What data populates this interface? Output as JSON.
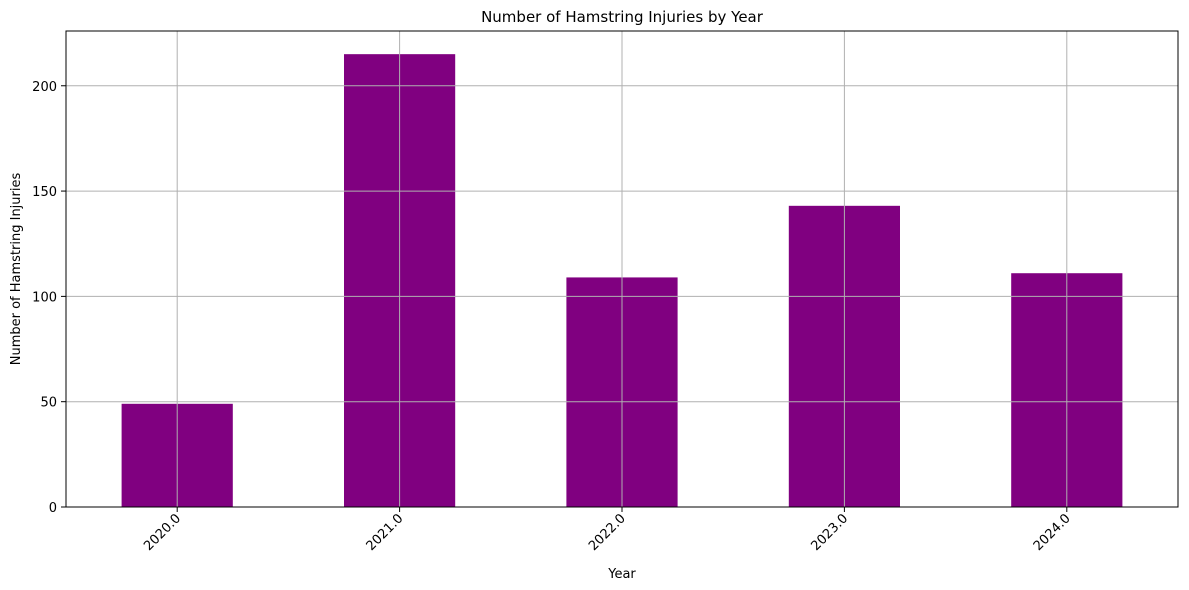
{
  "chart_data": {
    "type": "bar",
    "title": "Number of Hamstring Injuries by Year",
    "xlabel": "Year",
    "ylabel": "Number of Hamstring Injuries",
    "categories": [
      "2020.0",
      "2021.0",
      "2022.0",
      "2023.0",
      "2024.0"
    ],
    "values": [
      49,
      215,
      109,
      143,
      111
    ],
    "ylim": [
      0,
      226
    ],
    "yticks": [
      0,
      50,
      100,
      150,
      200
    ],
    "grid": true,
    "bar_color": "#800080",
    "grid_color": "#b0b0b0",
    "x_tick_rotation": 45
  }
}
